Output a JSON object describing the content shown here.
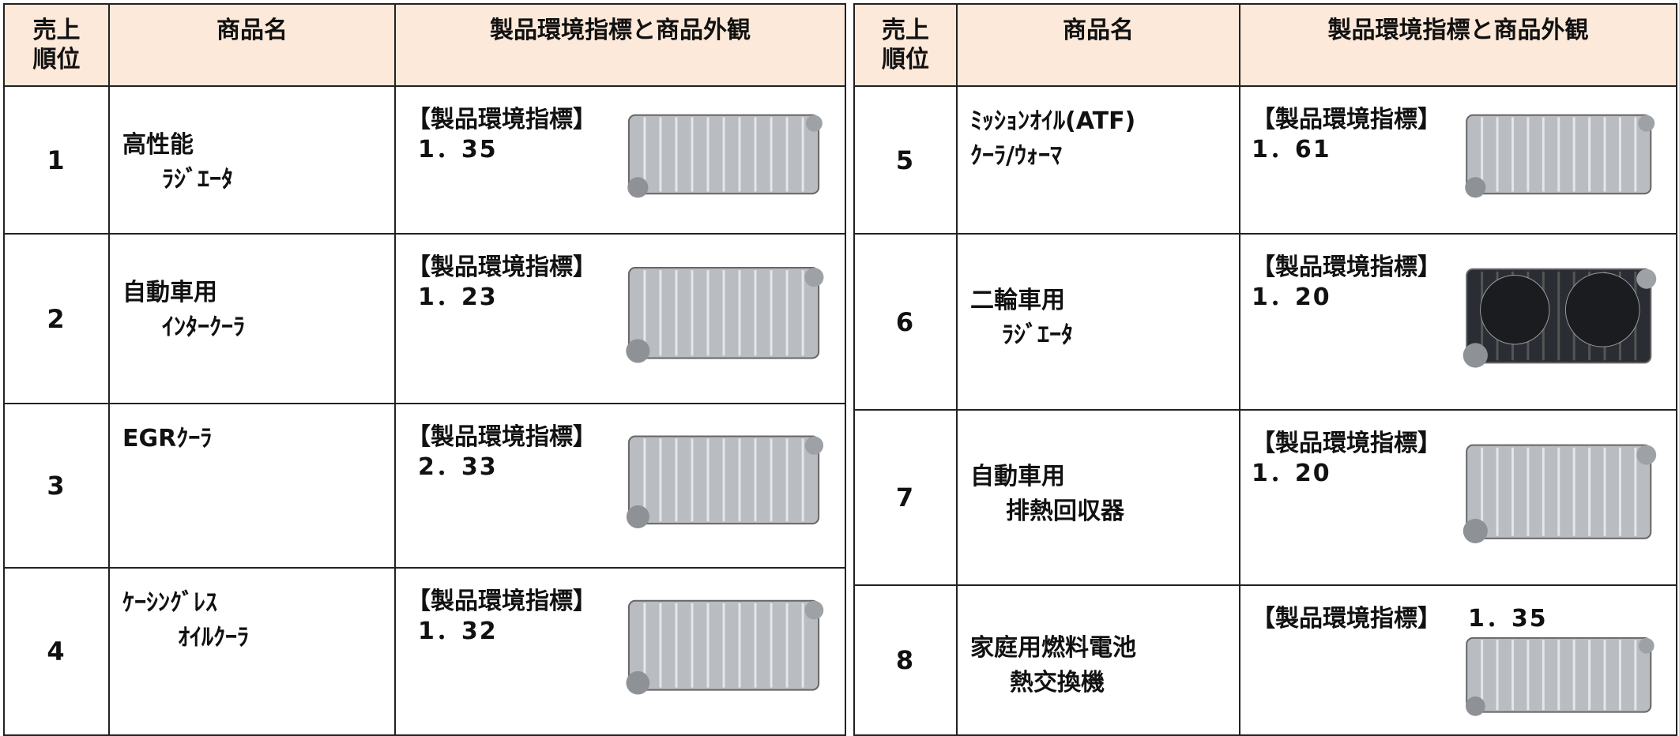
{
  "tables": [
    {
      "header": {
        "rank": [
          "売上",
          "順位"
        ],
        "name": "商品名",
        "index": "製品環境指標と商品外観"
      },
      "rows": [
        {
          "rank": "1",
          "name": [
            "高性能",
            "ﾗｼﾞｴｰﾀ"
          ],
          "index_label": "【製品環境指標】",
          "index_value": "1．35"
        },
        {
          "rank": "2",
          "name": [
            "自動車用",
            "ｲﾝﾀｰｸｰﾗ"
          ],
          "index_label": "【製品環境指標】",
          "index_value": "1．23"
        },
        {
          "rank": "3",
          "name": [
            "EGRｸｰﾗ"
          ],
          "index_label": "【製品環境指標】",
          "index_value": "2．33"
        },
        {
          "rank": "4",
          "name": [
            "ｹｰｼﾝｸﾞﾚｽ",
            "ｵｲﾙｸｰﾗ"
          ],
          "index_label": "【製品環境指標】",
          "index_value": "1．32"
        }
      ]
    },
    {
      "header": {
        "rank": [
          "売上",
          "順位"
        ],
        "name": "商品名",
        "index": "製品環境指標と商品外観"
      },
      "rows": [
        {
          "rank": "5",
          "name": [
            "ﾐｯｼｮﾝｵｲﾙ(ATF)",
            "ｸｰﾗ/ｳｫｰﾏ"
          ],
          "index_label": "【製品環境指標】",
          "index_value": "1．61"
        },
        {
          "rank": "6",
          "name": [
            "二輪車用",
            "ﾗｼﾞｴｰﾀ"
          ],
          "index_label": "【製品環境指標】",
          "index_value": "1．20"
        },
        {
          "rank": "7",
          "name": [
            "自動車用",
            "排熱回収器"
          ],
          "index_label": "【製品環境指標】",
          "index_value": "1．20"
        },
        {
          "rank": "8",
          "name": [
            "家庭用燃料電池",
            "熱交換機"
          ],
          "index_label": "【製品環境指標】",
          "index_value": "1．35"
        }
      ]
    }
  ]
}
